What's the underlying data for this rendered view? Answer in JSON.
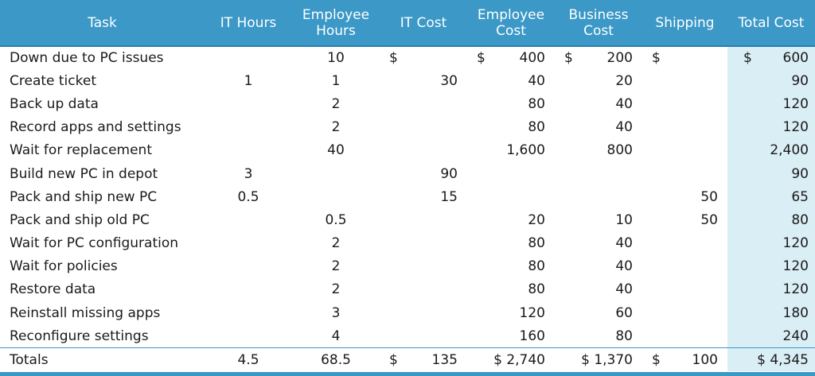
{
  "headers": {
    "task": "Task",
    "it_hours": "IT Hours",
    "employee_hours_1": "Employee",
    "employee_hours_2": "Hours",
    "it_cost": "IT Cost",
    "employee_cost_1": "Employee",
    "employee_cost_2": "Cost",
    "business_cost_1": "Business",
    "business_cost_2": "Cost",
    "shipping": "Shipping",
    "total_cost": "Total Cost"
  },
  "currency_symbol": "$",
  "rows": [
    {
      "task": "Down due to PC issues",
      "it_hours": "",
      "employee_hours": "10",
      "it_cost": "",
      "employee_cost": "400",
      "business_cost": "200",
      "shipping": "",
      "total_cost": "600"
    },
    {
      "task": "Create ticket",
      "it_hours": "1",
      "employee_hours": "1",
      "it_cost": "30",
      "employee_cost": "40",
      "business_cost": "20",
      "shipping": "",
      "total_cost": "90"
    },
    {
      "task": "Back up data",
      "it_hours": "",
      "employee_hours": "2",
      "it_cost": "",
      "employee_cost": "80",
      "business_cost": "40",
      "shipping": "",
      "total_cost": "120"
    },
    {
      "task": "Record apps and settings",
      "it_hours": "",
      "employee_hours": "2",
      "it_cost": "",
      "employee_cost": "80",
      "business_cost": "40",
      "shipping": "",
      "total_cost": "120"
    },
    {
      "task": "Wait for replacement",
      "it_hours": "",
      "employee_hours": "40",
      "it_cost": "",
      "employee_cost": "1,600",
      "business_cost": "800",
      "shipping": "",
      "total_cost": "2,400"
    },
    {
      "task": "Build new PC in depot",
      "it_hours": "3",
      "employee_hours": "",
      "it_cost": "90",
      "employee_cost": "",
      "business_cost": "",
      "shipping": "",
      "total_cost": "90"
    },
    {
      "task": "Pack and ship new PC",
      "it_hours": "0.5",
      "employee_hours": "",
      "it_cost": "15",
      "employee_cost": "",
      "business_cost": "",
      "shipping": "50",
      "total_cost": "65"
    },
    {
      "task": "Pack and ship old PC",
      "it_hours": "",
      "employee_hours": "0.5",
      "it_cost": "",
      "employee_cost": "20",
      "business_cost": "10",
      "shipping": "50",
      "total_cost": "80"
    },
    {
      "task": "Wait for PC configuration",
      "it_hours": "",
      "employee_hours": "2",
      "it_cost": "",
      "employee_cost": "80",
      "business_cost": "40",
      "shipping": "",
      "total_cost": "120"
    },
    {
      "task": "Wait for policies",
      "it_hours": "",
      "employee_hours": "2",
      "it_cost": "",
      "employee_cost": "80",
      "business_cost": "40",
      "shipping": "",
      "total_cost": "120"
    },
    {
      "task": "Restore data",
      "it_hours": "",
      "employee_hours": "2",
      "it_cost": "",
      "employee_cost": "80",
      "business_cost": "40",
      "shipping": "",
      "total_cost": "120"
    },
    {
      "task": "Reinstall missing apps",
      "it_hours": "",
      "employee_hours": "3",
      "it_cost": "",
      "employee_cost": "120",
      "business_cost": "60",
      "shipping": "",
      "total_cost": "180"
    },
    {
      "task": "Reconfigure settings",
      "it_hours": "",
      "employee_hours": "4",
      "it_cost": "",
      "employee_cost": "160",
      "business_cost": "80",
      "shipping": "",
      "total_cost": "240"
    }
  ],
  "totals": {
    "label": "Totals",
    "it_hours": "4.5",
    "employee_hours": "68.5",
    "it_cost": "135",
    "employee_cost": "$ 2,740",
    "business_cost": "$ 1,370",
    "shipping": "100",
    "total_cost": "$ 4,345"
  },
  "colors": {
    "header_bg": "#3b98c7",
    "header_text": "#ffffff",
    "total_column_bg": "#daeef6"
  }
}
